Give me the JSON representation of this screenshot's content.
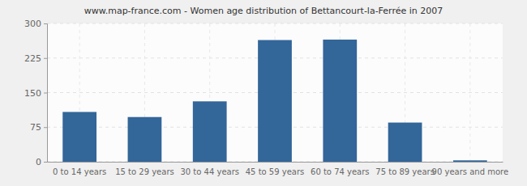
{
  "chart_data": {
    "type": "bar",
    "title": "www.map-france.com - Women age distribution of Bettancourt-la-Ferrée in 2007",
    "categories": [
      "0 to 14 years",
      "15 to 29 years",
      "30 to 44 years",
      "45 to 59 years",
      "60 to 74 years",
      "75 to 89 years",
      "90 years and more"
    ],
    "values": [
      108,
      97,
      131,
      264,
      265,
      85,
      3
    ],
    "color": "#336699",
    "ylim": [
      0,
      300
    ],
    "yticks": [
      0,
      75,
      150,
      225,
      300
    ],
    "grid": true
  }
}
